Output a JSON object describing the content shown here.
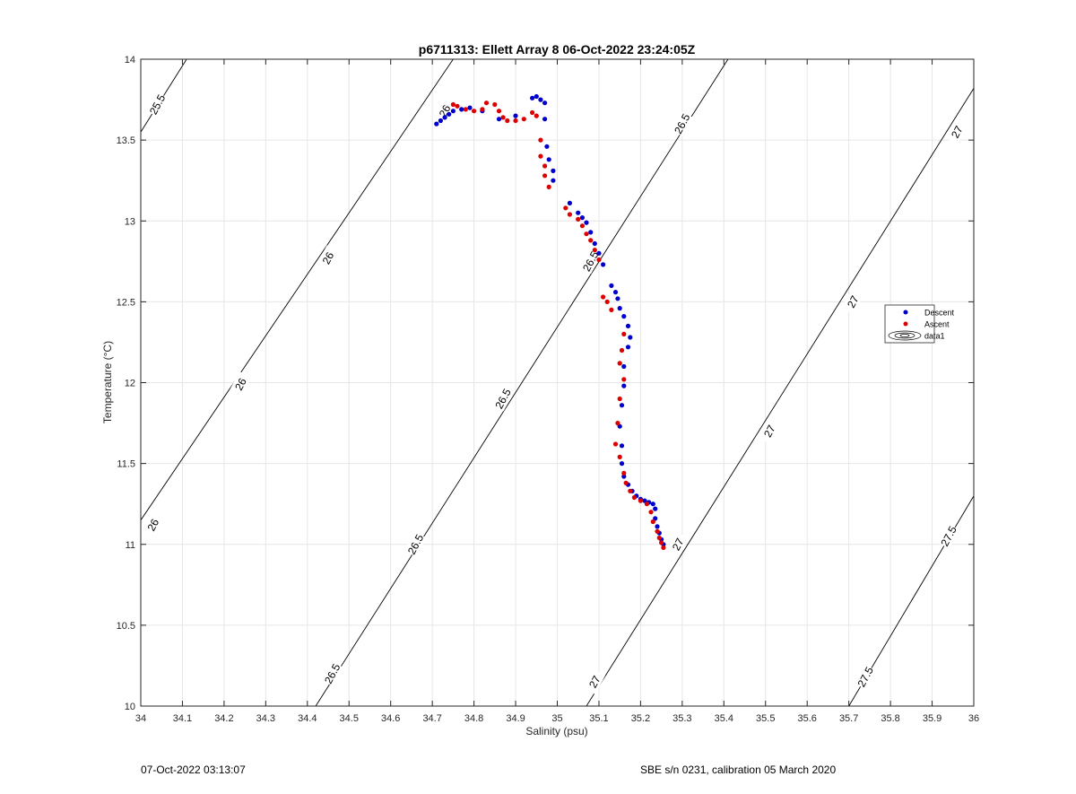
{
  "chart_data": {
    "type": "scatter",
    "title": "p6711313: Ellett Array 8 06-Oct-2022 23:24:05Z",
    "xlabel": "Salinity (psu)",
    "ylabel": "Temperature (°C)",
    "xlim": [
      34,
      36
    ],
    "ylim": [
      10,
      14
    ],
    "xticks": [
      34,
      34.1,
      34.2,
      34.3,
      34.4,
      34.5,
      34.6,
      34.7,
      34.8,
      34.9,
      35,
      35.1,
      35.2,
      35.3,
      35.4,
      35.5,
      35.6,
      35.7,
      35.8,
      35.9,
      36
    ],
    "xtick_labels": [
      "34",
      "34.1",
      "34.2",
      "34.3",
      "34.4",
      "34.5",
      "34.6",
      "34.7",
      "34.8",
      "34.9",
      "35",
      "35.1",
      "35.2",
      "35.3",
      "35.4",
      "35.5",
      "35.6",
      "35.7",
      "35.8",
      "35.9",
      "36"
    ],
    "yticks": [
      10,
      10.5,
      11,
      11.5,
      12,
      12.5,
      13,
      13.5,
      14
    ],
    "ytick_labels": [
      "10",
      "10.5",
      "11",
      "11.5",
      "12",
      "12.5",
      "13",
      "13.5",
      "14"
    ],
    "grid": true,
    "legend_position": "right",
    "contours": [
      {
        "label": "25.5",
        "points": [
          [
            34.0,
            13.55
          ],
          [
            34.11,
            14.0
          ]
        ]
      },
      {
        "label": "26",
        "points": [
          [
            34.0,
            11.15
          ],
          [
            34.75,
            14.0
          ]
        ]
      },
      {
        "label": "26.5",
        "points": [
          [
            34.42,
            10.0
          ],
          [
            35.41,
            14.0
          ]
        ]
      },
      {
        "label": "27",
        "points": [
          [
            35.07,
            10.0
          ],
          [
            36.0,
            13.82
          ]
        ]
      },
      {
        "label": "27.5",
        "points": [
          [
            35.7,
            10.0
          ],
          [
            36.0,
            11.3
          ]
        ]
      }
    ],
    "contour_labels": [
      {
        "text": "25.5",
        "x": 34.04,
        "y": 13.72
      },
      {
        "text": "26",
        "x": 34.73,
        "y": 13.68
      },
      {
        "text": "26",
        "x": 34.45,
        "y": 12.77
      },
      {
        "text": "26",
        "x": 34.24,
        "y": 11.99
      },
      {
        "text": "26",
        "x": 34.03,
        "y": 11.12
      },
      {
        "text": "26.5",
        "x": 35.3,
        "y": 13.6
      },
      {
        "text": "26.5",
        "x": 35.08,
        "y": 12.75
      },
      {
        "text": "26.5",
        "x": 34.87,
        "y": 11.9
      },
      {
        "text": "26.5",
        "x": 34.66,
        "y": 11.0
      },
      {
        "text": "26.5",
        "x": 34.46,
        "y": 10.2
      },
      {
        "text": "27",
        "x": 35.96,
        "y": 13.55
      },
      {
        "text": "27",
        "x": 35.71,
        "y": 12.5
      },
      {
        "text": "27",
        "x": 35.51,
        "y": 11.7
      },
      {
        "text": "27",
        "x": 35.29,
        "y": 11.0
      },
      {
        "text": "27",
        "x": 35.09,
        "y": 10.15
      },
      {
        "text": "27.5",
        "x": 35.94,
        "y": 11.05
      },
      {
        "text": "27.5",
        "x": 35.74,
        "y": 10.18
      }
    ],
    "series": [
      {
        "name": "Descent",
        "color": "#0000cc",
        "points": [
          [
            34.71,
            13.6
          ],
          [
            34.72,
            13.62
          ],
          [
            34.73,
            13.64
          ],
          [
            34.74,
            13.66
          ],
          [
            34.75,
            13.68
          ],
          [
            34.77,
            13.69
          ],
          [
            34.79,
            13.7
          ],
          [
            34.82,
            13.68
          ],
          [
            34.86,
            13.63
          ],
          [
            34.9,
            13.65
          ],
          [
            34.94,
            13.76
          ],
          [
            34.95,
            13.77
          ],
          [
            34.96,
            13.75
          ],
          [
            34.97,
            13.73
          ],
          [
            34.97,
            13.63
          ],
          [
            34.975,
            13.46
          ],
          [
            34.98,
            13.38
          ],
          [
            34.99,
            13.31
          ],
          [
            34.99,
            13.25
          ],
          [
            35.03,
            13.11
          ],
          [
            35.05,
            13.05
          ],
          [
            35.06,
            13.02
          ],
          [
            35.07,
            12.99
          ],
          [
            35.08,
            12.93
          ],
          [
            35.09,
            12.86
          ],
          [
            35.1,
            12.8
          ],
          [
            35.11,
            12.73
          ],
          [
            35.13,
            12.6
          ],
          [
            35.14,
            12.56
          ],
          [
            35.145,
            12.52
          ],
          [
            35.15,
            12.46
          ],
          [
            35.16,
            12.41
          ],
          [
            35.17,
            12.35
          ],
          [
            35.175,
            12.28
          ],
          [
            35.17,
            12.22
          ],
          [
            35.16,
            12.1
          ],
          [
            35.16,
            11.98
          ],
          [
            35.155,
            11.86
          ],
          [
            35.15,
            11.73
          ],
          [
            35.155,
            11.61
          ],
          [
            35.155,
            11.5
          ],
          [
            35.16,
            11.42
          ],
          [
            35.17,
            11.37
          ],
          [
            35.18,
            11.33
          ],
          [
            35.19,
            11.3
          ],
          [
            35.2,
            11.28
          ],
          [
            35.21,
            11.27
          ],
          [
            35.22,
            11.26
          ],
          [
            35.23,
            11.25
          ],
          [
            35.235,
            11.22
          ],
          [
            35.235,
            11.16
          ],
          [
            35.24,
            11.11
          ],
          [
            35.245,
            11.07
          ],
          [
            35.25,
            11.03
          ],
          [
            35.255,
            11.0
          ]
        ]
      },
      {
        "name": "Ascent",
        "color": "#dd0000",
        "points": [
          [
            34.75,
            13.72
          ],
          [
            34.76,
            13.71
          ],
          [
            34.78,
            13.69
          ],
          [
            34.8,
            13.68
          ],
          [
            34.82,
            13.69
          ],
          [
            34.83,
            13.73
          ],
          [
            34.85,
            13.72
          ],
          [
            34.86,
            13.68
          ],
          [
            34.87,
            13.64
          ],
          [
            34.88,
            13.62
          ],
          [
            34.9,
            13.62
          ],
          [
            34.92,
            13.63
          ],
          [
            34.94,
            13.67
          ],
          [
            34.95,
            13.65
          ],
          [
            34.96,
            13.5
          ],
          [
            34.96,
            13.4
          ],
          [
            34.97,
            13.34
          ],
          [
            34.97,
            13.28
          ],
          [
            34.98,
            13.21
          ],
          [
            35.02,
            13.08
          ],
          [
            35.03,
            13.04
          ],
          [
            35.05,
            13.01
          ],
          [
            35.06,
            12.97
          ],
          [
            35.07,
            12.92
          ],
          [
            35.08,
            12.88
          ],
          [
            35.09,
            12.82
          ],
          [
            35.1,
            12.76
          ],
          [
            35.11,
            12.53
          ],
          [
            35.12,
            12.5
          ],
          [
            35.13,
            12.45
          ],
          [
            35.16,
            12.3
          ],
          [
            35.155,
            12.2
          ],
          [
            35.15,
            12.12
          ],
          [
            35.16,
            12.02
          ],
          [
            35.15,
            11.9
          ],
          [
            35.145,
            11.75
          ],
          [
            35.14,
            11.62
          ],
          [
            35.15,
            11.54
          ],
          [
            35.16,
            11.44
          ],
          [
            35.165,
            11.38
          ],
          [
            35.175,
            11.33
          ],
          [
            35.185,
            11.29
          ],
          [
            35.2,
            11.27
          ],
          [
            35.215,
            11.25
          ],
          [
            35.225,
            11.2
          ],
          [
            35.23,
            11.14
          ],
          [
            35.24,
            11.08
          ],
          [
            35.245,
            11.04
          ],
          [
            35.25,
            11.01
          ],
          [
            35.255,
            10.98
          ]
        ]
      },
      {
        "name": "data1",
        "color": "#000000",
        "points": []
      }
    ]
  },
  "footer": {
    "left": "07-Oct-2022 03:13:07",
    "right": "SBE s/n 0231, calibration 05 March 2020"
  }
}
